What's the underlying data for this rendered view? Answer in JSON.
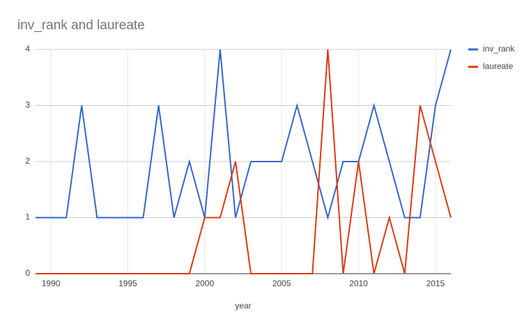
{
  "chart_data": {
    "type": "line",
    "title": "inv_rank and laureate",
    "x_label": "year",
    "x": [
      1989,
      1990,
      1991,
      1992,
      1993,
      1994,
      1995,
      1996,
      1997,
      1998,
      1999,
      2000,
      2001,
      2002,
      2003,
      2004,
      2005,
      2006,
      2007,
      2008,
      2009,
      2010,
      2011,
      2012,
      2013,
      2014,
      2015,
      2016
    ],
    "series": [
      {
        "name": "inv_rank",
        "color": "#3366cc",
        "values": [
          1,
          1,
          1,
          3,
          1,
          1,
          1,
          1,
          3,
          1,
          2,
          1,
          4,
          1,
          2,
          2,
          2,
          3,
          2,
          1,
          2,
          2,
          3,
          2,
          1,
          1,
          3,
          4
        ]
      },
      {
        "name": "laureate",
        "color": "#dc3912",
        "values": [
          0,
          0,
          0,
          0,
          0,
          0,
          0,
          0,
          0,
          0,
          0,
          1,
          1,
          2,
          0,
          0,
          0,
          0,
          0,
          4,
          0,
          2,
          0,
          1,
          0,
          3,
          2,
          1
        ]
      }
    ],
    "xlim": [
      1989,
      2016
    ],
    "xticks": [
      1990,
      1995,
      2000,
      2005,
      2010,
      2015
    ],
    "ylim": [
      0,
      4
    ],
    "yticks": [
      0,
      1,
      2,
      3,
      4
    ],
    "grid": true,
    "legend_position": "right"
  }
}
